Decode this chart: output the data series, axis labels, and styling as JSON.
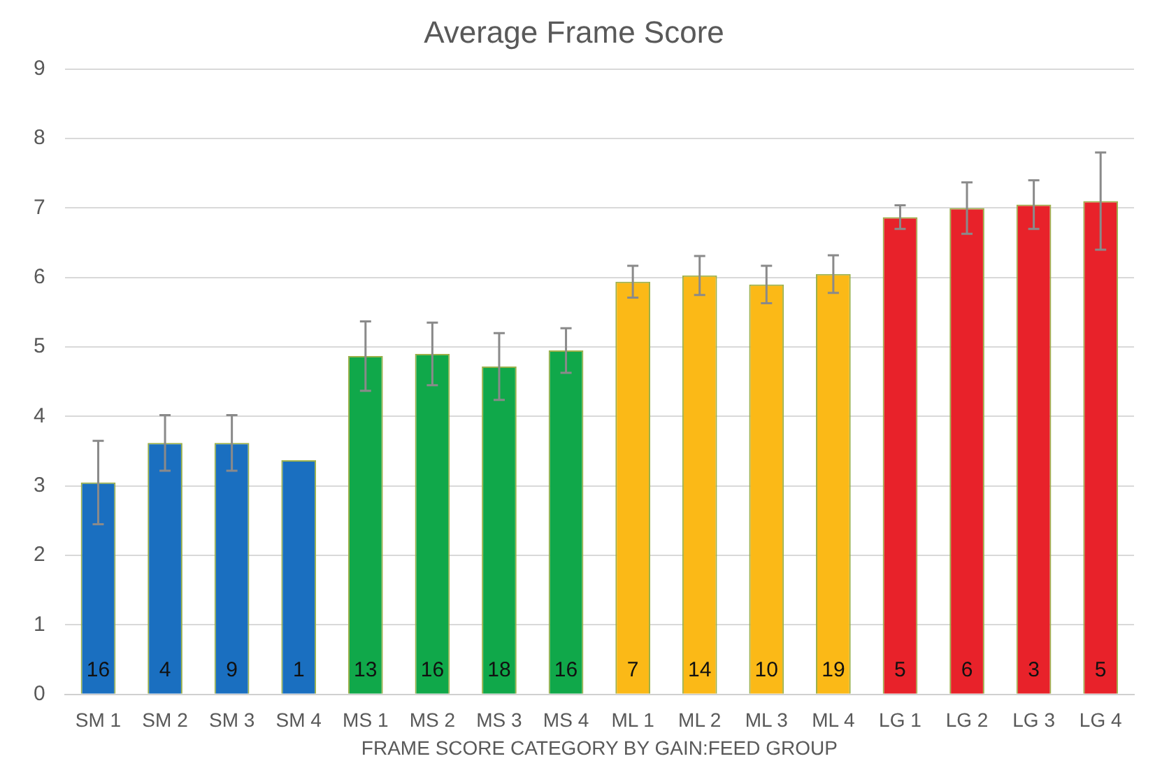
{
  "chart_data": {
    "type": "bar",
    "title": "Average Frame Score",
    "xlabel": "FRAME SCORE CATEGORY BY GAIN:FEED GROUP",
    "categories": [
      "SM 1",
      "SM 2",
      "SM 3",
      "SM 4",
      "MS 1",
      "MS 2",
      "MS 3",
      "MS 4",
      "ML 1",
      "ML 2",
      "ML 3",
      "ML 4",
      "LG 1",
      "LG 2",
      "LG 3",
      "LG 4"
    ],
    "values": [
      3.05,
      3.62,
      3.62,
      3.37,
      4.87,
      4.9,
      4.72,
      4.95,
      5.94,
      6.03,
      5.9,
      6.05,
      6.87,
      7.0,
      7.05,
      7.1
    ],
    "errors": [
      0.6,
      0.4,
      0.4,
      null,
      0.5,
      0.45,
      0.48,
      0.32,
      0.23,
      0.28,
      0.27,
      0.27,
      0.17,
      0.37,
      0.35,
      0.7
    ],
    "colors": [
      "#1a6fc0",
      "#1a6fc0",
      "#1a6fc0",
      "#1a6fc0",
      "#10a84a",
      "#10a84a",
      "#10a84a",
      "#10a84a",
      "#fbb917",
      "#fbb917",
      "#fbb917",
      "#fbb917",
      "#e8222a",
      "#e8222a",
      "#e8222a",
      "#e8222a"
    ],
    "ylim": [
      0,
      9
    ],
    "yticks": [
      0,
      1,
      2,
      3,
      4,
      5,
      6,
      7,
      8,
      9
    ],
    "grid": "y",
    "legend": false,
    "annotations": [
      "16",
      "4",
      "9",
      "1",
      "13",
      "16",
      "18",
      "16",
      "7",
      "14",
      "10",
      "19",
      "5",
      "6",
      "3",
      "5"
    ]
  }
}
